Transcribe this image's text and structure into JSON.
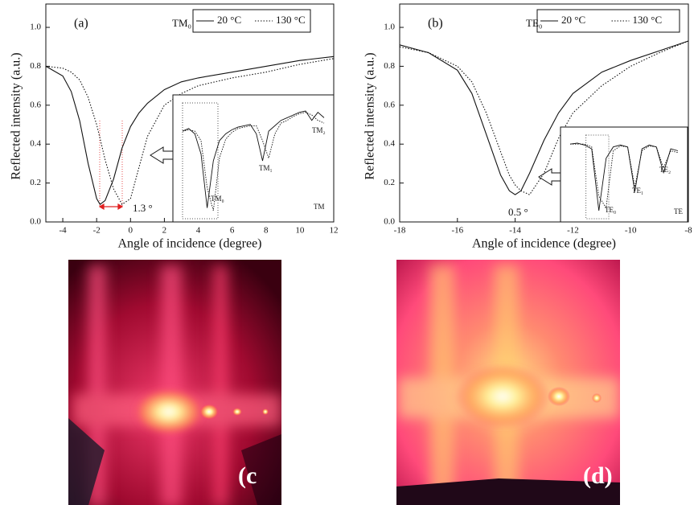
{
  "chart_data": [
    {
      "type": "line",
      "title": "(a)",
      "mode_label": "TM₀",
      "xlabel": "Angle of incidence (degree)",
      "ylabel": "Reflected intensity (a.u.)",
      "annotation": "1.3 °",
      "x": [
        -5,
        -4,
        -3.5,
        -3,
        -2.5,
        -2,
        -1.8,
        -1.5,
        -1,
        -0.5,
        0,
        0.5,
        1,
        2,
        3,
        4,
        6,
        8,
        10,
        12
      ],
      "series": [
        {
          "name": "20 °C",
          "color": "#111111",
          "dash": "solid",
          "values": [
            0.8,
            0.75,
            0.67,
            0.52,
            0.3,
            0.12,
            0.09,
            0.11,
            0.22,
            0.38,
            0.49,
            0.56,
            0.61,
            0.68,
            0.72,
            0.74,
            0.77,
            0.8,
            0.83,
            0.85
          ]
        },
        {
          "name": "130 °C",
          "color": "#111111",
          "dash": "dotted",
          "values": [
            0.8,
            0.79,
            0.77,
            0.73,
            0.64,
            0.5,
            0.43,
            0.32,
            0.17,
            0.09,
            0.12,
            0.28,
            0.44,
            0.6,
            0.66,
            0.7,
            0.74,
            0.77,
            0.81,
            0.84
          ]
        }
      ],
      "xlim": [
        -5,
        12
      ],
      "xticks": [
        -4,
        -2,
        0,
        2,
        4,
        6,
        8,
        10,
        12
      ],
      "ylim": [
        0,
        1.12
      ],
      "yticks": [
        {
          "value": 0,
          "label": "0.0"
        },
        0.2,
        0.4,
        0.6,
        0.8,
        {
          "value": 1,
          "label": "1.0"
        }
      ],
      "inset": {
        "labels": [
          "TM₀",
          "TM₁",
          "TM₂",
          "TM"
        ],
        "series": [
          {
            "values": [
              0.62,
              0.64,
              0.6,
              0.45,
              0.05,
              0.4,
              0.55,
              0.6,
              0.63,
              0.65,
              0.66,
              0.67,
              0.6,
              0.4,
              0.62,
              0.66,
              0.7,
              0.72,
              0.74,
              0.76,
              0.77,
              0.7,
              0.76,
              0.72
            ]
          },
          {
            "values": [
              0.62,
              0.63,
              0.62,
              0.55,
              0.2,
              0.03,
              0.42,
              0.56,
              0.61,
              0.64,
              0.65,
              0.66,
              0.66,
              0.55,
              0.42,
              0.6,
              0.68,
              0.7,
              0.73,
              0.75,
              0.76,
              0.74,
              0.7,
              0.68
            ]
          }
        ]
      }
    },
    {
      "type": "line",
      "title": "(b)",
      "mode_label": "TE₀",
      "xlabel": "Angle of incidence (degree)",
      "ylabel": "Reflected intensity (a.u.)",
      "annotation": "0.5 °",
      "x": [
        -18,
        -17,
        -16,
        -15.5,
        -15,
        -14.5,
        -14.2,
        -14,
        -13.8,
        -13.5,
        -13,
        -12.5,
        -12,
        -11,
        -10,
        -9,
        -8
      ],
      "series": [
        {
          "name": "20 °C",
          "color": "#111111",
          "dash": "solid",
          "values": [
            0.91,
            0.87,
            0.78,
            0.66,
            0.45,
            0.24,
            0.16,
            0.14,
            0.16,
            0.25,
            0.42,
            0.56,
            0.66,
            0.77,
            0.83,
            0.88,
            0.93
          ]
        },
        {
          "name": "130 °C",
          "color": "#111111",
          "dash": "dotted",
          "values": [
            0.9,
            0.87,
            0.8,
            0.72,
            0.56,
            0.36,
            0.24,
            0.19,
            0.16,
            0.14,
            0.25,
            0.43,
            0.56,
            0.7,
            0.8,
            0.87,
            0.93
          ]
        }
      ],
      "xlim": [
        -18,
        -8
      ],
      "xticks": [
        -18,
        -16,
        -14,
        -12,
        -10,
        -8
      ],
      "ylim": [
        0,
        1.12
      ],
      "yticks": [
        {
          "value": 0,
          "label": "0.0"
        },
        0.2,
        0.4,
        0.6,
        0.8,
        {
          "value": 1,
          "label": "1.0"
        }
      ],
      "inset": {
        "labels": [
          "TE₀",
          "TE₁",
          "TE₂",
          "TE"
        ],
        "series": [
          {
            "values": [
              0.75,
              0.76,
              0.74,
              0.7,
              0.05,
              0.6,
              0.72,
              0.74,
              0.72,
              0.25,
              0.7,
              0.74,
              0.72,
              0.45,
              0.7,
              0.68
            ]
          },
          {
            "values": [
              0.75,
              0.75,
              0.75,
              0.72,
              0.2,
              0.08,
              0.68,
              0.73,
              0.72,
              0.3,
              0.68,
              0.73,
              0.72,
              0.5,
              0.68,
              0.66
            ]
          }
        ]
      }
    }
  ],
  "photos": [
    {
      "label": "(c"
    },
    {
      "label": "(d)"
    }
  ]
}
